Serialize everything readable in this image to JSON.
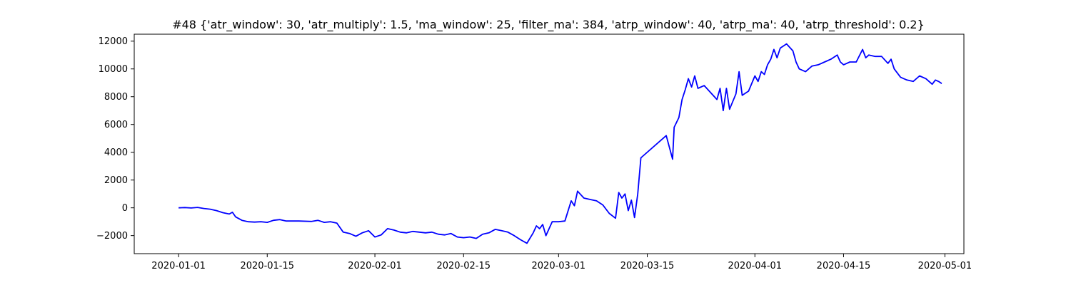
{
  "chart_data": {
    "type": "line",
    "title": "#48 {'atr_window': 30, 'atr_multiply': 1.5, 'ma_window': 25, 'filter_ma': 384, 'atrp_window': 40, 'atrp_ma': 40, 'atrp_threshold': 0.2}",
    "xlabel": "",
    "ylabel": "",
    "x_axis_type": "date",
    "xlim": [
      "2019-12-25",
      "2020-05-04"
    ],
    "ylim": [
      -3300,
      12500
    ],
    "grid": false,
    "x_ticks": [
      {
        "date": "2020-01-01",
        "label": "2020-01-01"
      },
      {
        "date": "2020-01-15",
        "label": "2020-01-15"
      },
      {
        "date": "2020-02-01",
        "label": "2020-02-01"
      },
      {
        "date": "2020-02-15",
        "label": "2020-02-15"
      },
      {
        "date": "2020-03-01",
        "label": "2020-03-01"
      },
      {
        "date": "2020-03-15",
        "label": "2020-03-15"
      },
      {
        "date": "2020-04-01",
        "label": "2020-04-01"
      },
      {
        "date": "2020-04-15",
        "label": "2020-04-15"
      },
      {
        "date": "2020-05-01",
        "label": "2020-05-01"
      }
    ],
    "y_ticks": [
      {
        "value": -2000,
        "label": "−2000"
      },
      {
        "value": 0,
        "label": "0"
      },
      {
        "value": 2000,
        "label": "2000"
      },
      {
        "value": 4000,
        "label": "4000"
      },
      {
        "value": 6000,
        "label": "6000"
      },
      {
        "value": 8000,
        "label": "8000"
      },
      {
        "value": 10000,
        "label": "10000"
      },
      {
        "value": 12000,
        "label": "12000"
      }
    ],
    "series": [
      {
        "color": "#0000ff",
        "points": [
          [
            "2020-01-01",
            0
          ],
          [
            "2020-01-02",
            20
          ],
          [
            "2020-01-03",
            -10
          ],
          [
            "2020-01-04",
            30
          ],
          [
            "2020-01-05",
            -50
          ],
          [
            "2020-01-06",
            -100
          ],
          [
            "2020-01-07",
            -200
          ],
          [
            "2020-01-08",
            -350
          ],
          [
            "2020-01-09",
            -450
          ],
          [
            "2020-01-09T12",
            -320
          ],
          [
            "2020-01-10",
            -650
          ],
          [
            "2020-01-11",
            -900
          ],
          [
            "2020-01-12",
            -1000
          ],
          [
            "2020-01-13",
            -1030
          ],
          [
            "2020-01-14",
            -1000
          ],
          [
            "2020-01-15",
            -1050
          ],
          [
            "2020-01-16",
            -900
          ],
          [
            "2020-01-17",
            -850
          ],
          [
            "2020-01-18",
            -950
          ],
          [
            "2020-01-20",
            -950
          ],
          [
            "2020-01-22",
            -980
          ],
          [
            "2020-01-23",
            -900
          ],
          [
            "2020-01-24",
            -1050
          ],
          [
            "2020-01-25",
            -1000
          ],
          [
            "2020-01-26",
            -1100
          ],
          [
            "2020-01-27",
            -1750
          ],
          [
            "2020-01-28",
            -1850
          ],
          [
            "2020-01-29",
            -2050
          ],
          [
            "2020-01-30",
            -1800
          ],
          [
            "2020-01-31",
            -1650
          ],
          [
            "2020-02-01",
            -2100
          ],
          [
            "2020-02-02",
            -1950
          ],
          [
            "2020-02-03",
            -1500
          ],
          [
            "2020-02-04",
            -1600
          ],
          [
            "2020-02-05",
            -1750
          ],
          [
            "2020-02-06",
            -1800
          ],
          [
            "2020-02-07",
            -1700
          ],
          [
            "2020-02-08",
            -1750
          ],
          [
            "2020-02-09",
            -1800
          ],
          [
            "2020-02-10",
            -1750
          ],
          [
            "2020-02-11",
            -1900
          ],
          [
            "2020-02-12",
            -1950
          ],
          [
            "2020-02-13",
            -1850
          ],
          [
            "2020-02-14",
            -2100
          ],
          [
            "2020-02-15",
            -2150
          ],
          [
            "2020-02-16",
            -2100
          ],
          [
            "2020-02-17",
            -2200
          ],
          [
            "2020-02-18",
            -1900
          ],
          [
            "2020-02-19",
            -1800
          ],
          [
            "2020-02-20",
            -1550
          ],
          [
            "2020-02-21",
            -1650
          ],
          [
            "2020-02-22",
            -1750
          ],
          [
            "2020-02-23",
            -2000
          ],
          [
            "2020-02-24",
            -2300
          ],
          [
            "2020-02-25",
            -2550
          ],
          [
            "2020-02-26",
            -1800
          ],
          [
            "2020-02-26T12",
            -1300
          ],
          [
            "2020-02-27",
            -1500
          ],
          [
            "2020-02-27T12",
            -1200
          ],
          [
            "2020-02-28",
            -2000
          ],
          [
            "2020-02-29",
            -1000
          ],
          [
            "2020-03-01",
            -1000
          ],
          [
            "2020-03-02",
            -950
          ],
          [
            "2020-03-03",
            500
          ],
          [
            "2020-03-03T12",
            150
          ],
          [
            "2020-03-04",
            1200
          ],
          [
            "2020-03-05",
            700
          ],
          [
            "2020-03-06",
            600
          ],
          [
            "2020-03-07",
            500
          ],
          [
            "2020-03-08",
            200
          ],
          [
            "2020-03-09",
            -400
          ],
          [
            "2020-03-10",
            -750
          ],
          [
            "2020-03-10T12",
            1100
          ],
          [
            "2020-03-11",
            700
          ],
          [
            "2020-03-11T12",
            1000
          ],
          [
            "2020-03-12",
            -200
          ],
          [
            "2020-03-12T12",
            550
          ],
          [
            "2020-03-13",
            -700
          ],
          [
            "2020-03-13T12",
            1000
          ],
          [
            "2020-03-14",
            3600
          ],
          [
            "2020-03-18",
            5200
          ],
          [
            "2020-03-19",
            3500
          ],
          [
            "2020-03-19T06",
            5800
          ],
          [
            "2020-03-20",
            6500
          ],
          [
            "2020-03-20T12",
            7800
          ],
          [
            "2020-03-21",
            8500
          ],
          [
            "2020-03-21T12",
            9300
          ],
          [
            "2020-03-22",
            8700
          ],
          [
            "2020-03-22T12",
            9500
          ],
          [
            "2020-03-23",
            8600
          ],
          [
            "2020-03-24",
            8800
          ],
          [
            "2020-03-25",
            8300
          ],
          [
            "2020-03-26",
            7800
          ],
          [
            "2020-03-26T12",
            8600
          ],
          [
            "2020-03-27",
            7000
          ],
          [
            "2020-03-27T12",
            8600
          ],
          [
            "2020-03-28",
            7100
          ],
          [
            "2020-03-29",
            8200
          ],
          [
            "2020-03-29T12",
            9800
          ],
          [
            "2020-03-30",
            8100
          ],
          [
            "2020-03-31",
            8400
          ],
          [
            "2020-04-01",
            9500
          ],
          [
            "2020-04-01T12",
            9100
          ],
          [
            "2020-04-02",
            9800
          ],
          [
            "2020-04-02T12",
            9600
          ],
          [
            "2020-04-03",
            10300
          ],
          [
            "2020-04-03T12",
            10700
          ],
          [
            "2020-04-04",
            11400
          ],
          [
            "2020-04-04T12",
            10800
          ],
          [
            "2020-04-05",
            11500
          ],
          [
            "2020-04-06",
            11800
          ],
          [
            "2020-04-07",
            11300
          ],
          [
            "2020-04-07T12",
            10500
          ],
          [
            "2020-04-08",
            10000
          ],
          [
            "2020-04-09",
            9800
          ],
          [
            "2020-04-10",
            10200
          ],
          [
            "2020-04-11",
            10300
          ],
          [
            "2020-04-12",
            10500
          ],
          [
            "2020-04-13",
            10700
          ],
          [
            "2020-04-14",
            11000
          ],
          [
            "2020-04-14T12",
            10500
          ],
          [
            "2020-04-15",
            10300
          ],
          [
            "2020-04-16",
            10500
          ],
          [
            "2020-04-17",
            10500
          ],
          [
            "2020-04-18",
            11400
          ],
          [
            "2020-04-18T12",
            10800
          ],
          [
            "2020-04-19",
            11000
          ],
          [
            "2020-04-20",
            10900
          ],
          [
            "2020-04-21",
            10900
          ],
          [
            "2020-04-22",
            10400
          ],
          [
            "2020-04-22T12",
            10700
          ],
          [
            "2020-04-23",
            10000
          ],
          [
            "2020-04-24",
            9400
          ],
          [
            "2020-04-25",
            9200
          ],
          [
            "2020-04-26",
            9100
          ],
          [
            "2020-04-27",
            9500
          ],
          [
            "2020-04-28",
            9300
          ],
          [
            "2020-04-29",
            8900
          ],
          [
            "2020-04-29T12",
            9200
          ],
          [
            "2020-04-30",
            9100
          ],
          [
            "2020-04-30T12",
            8950
          ]
        ]
      }
    ]
  }
}
